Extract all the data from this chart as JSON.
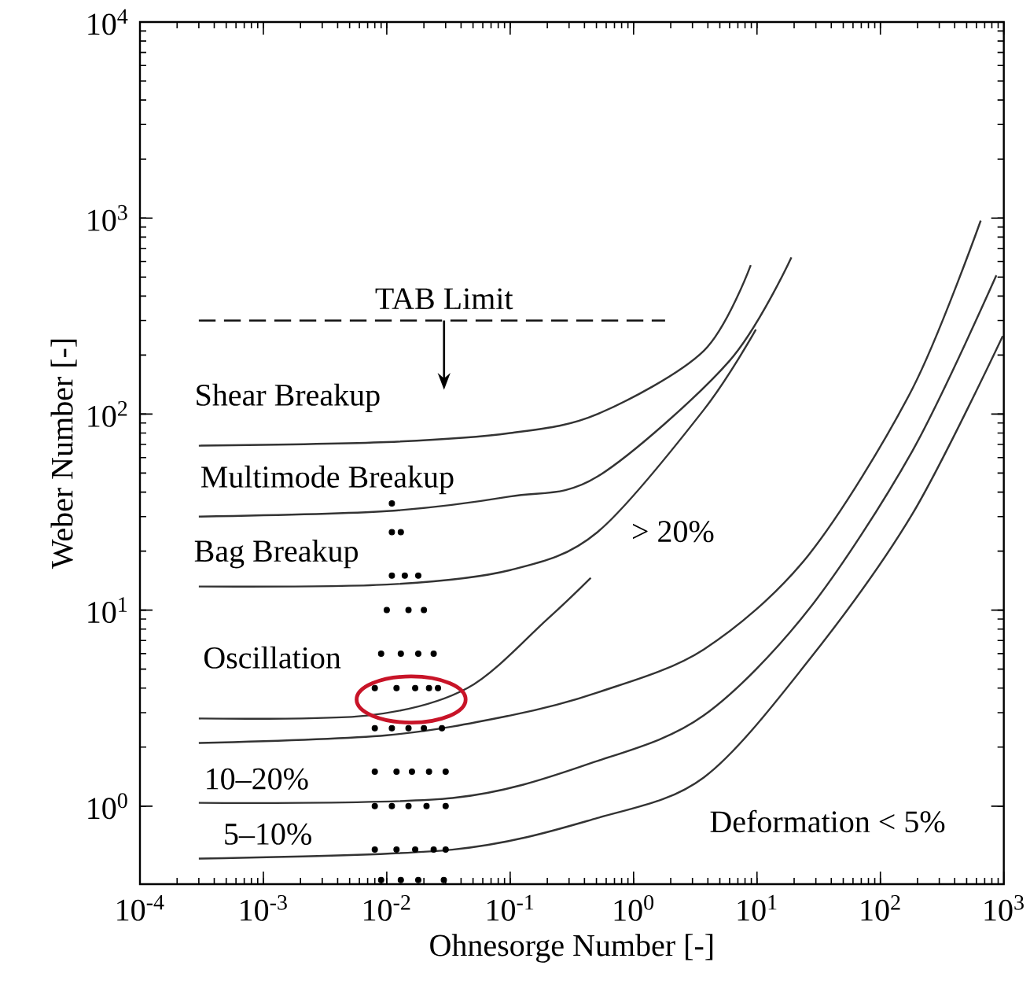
{
  "chart_data": {
    "type": "line",
    "xlabel": "Ohnesorge Number [-]",
    "ylabel": "Weber Number [-]",
    "log": "xy",
    "grid": false,
    "xlim": [
      0.0001,
      1000
    ],
    "ylim": [
      0.4,
      10000
    ],
    "xticks": [
      {
        "value": 0.0001,
        "label": "10$^{-4}$"
      },
      {
        "value": 0.001,
        "label": "10$^{-3}$"
      },
      {
        "value": 0.01,
        "label": "10$^{-2}$"
      },
      {
        "value": 0.1,
        "label": "10$^{-1}$"
      },
      {
        "value": 1,
        "label": "10$^{0}$"
      },
      {
        "value": 10,
        "label": "10$^{1}$"
      },
      {
        "value": 100,
        "label": "10$^{2}$"
      },
      {
        "value": 1000,
        "label": "10$^{3}$"
      }
    ],
    "yticks": [
      {
        "value": 1,
        "label": "10$^{0}$"
      },
      {
        "value": 10,
        "label": "10$^{1}$"
      },
      {
        "value": 100,
        "label": "10$^{2}$"
      },
      {
        "value": 1000,
        "label": "10$^{3}$"
      },
      {
        "value": 10000,
        "label": "10$^{4}$"
      }
    ],
    "series": [
      {
        "color": "#333333",
        "x": [
          0.0003,
          0.01,
          0.1,
          0.51,
          3.7,
          8.9
        ],
        "values": [
          69,
          72,
          80,
          100,
          210,
          575
        ]
      },
      {
        "color": "#333333",
        "x": [
          0.0003,
          0.01,
          0.1,
          0.51,
          5.9,
          19
        ],
        "values": [
          30,
          32,
          38,
          48,
          185,
          630
        ]
      },
      {
        "color": "#333333",
        "x": [
          0.0003,
          0.01,
          0.1,
          0.51,
          3.7,
          9.8
        ],
        "values": [
          13.2,
          13.5,
          16,
          25,
          105,
          270
        ]
      },
      {
        "color": "#333333",
        "x": [
          0.0003,
          0.007,
          0.045,
          0.2,
          0.45
        ],
        "values": [
          2.8,
          2.9,
          4.0,
          9,
          14.6
        ]
      },
      {
        "color": "#333333",
        "x": [
          0.0003,
          0.01,
          0.1,
          0.51,
          3.7,
          26,
          182,
          650
        ],
        "values": [
          2.1,
          2.3,
          2.9,
          3.8,
          6.3,
          19,
          135,
          970
        ]
      },
      {
        "color": "#333333",
        "x": [
          0.0003,
          0.034,
          0.51,
          3.7,
          26,
          182,
          870
        ],
        "values": [
          1.04,
          1.1,
          1.7,
          2.9,
          10,
          65,
          510
        ]
      },
      {
        "color": "#333333",
        "x": [
          0.0003,
          0.034,
          0.51,
          3.7,
          26,
          182,
          980
        ],
        "values": [
          0.54,
          0.6,
          0.87,
          1.4,
          5.5,
          31,
          250
        ]
      },
      {
        "color": "#111111",
        "line_style": "dashed",
        "x": [
          0.0003,
          1.8
        ],
        "values": [
          300,
          300
        ]
      },
      {
        "type": "scatter",
        "color": "#000000",
        "marker": "circle",
        "x": [
          0.011,
          0.011,
          0.013,
          0.011,
          0.014,
          0.018,
          0.01,
          0.015,
          0.02,
          0.009,
          0.013,
          0.018,
          0.024,
          0.008,
          0.012,
          0.017,
          0.022,
          0.026,
          0.008,
          0.011,
          0.015,
          0.02,
          0.028,
          0.008,
          0.012,
          0.016,
          0.022,
          0.03,
          0.008,
          0.011,
          0.015,
          0.021,
          0.03,
          0.008,
          0.012,
          0.017,
          0.024,
          0.03,
          0.009,
          0.013,
          0.018,
          0.029
        ],
        "values": [
          35,
          25,
          25,
          15,
          15,
          15,
          10,
          10,
          10,
          6,
          6,
          6,
          6,
          4,
          4,
          4,
          4,
          4,
          2.5,
          2.5,
          2.5,
          2.5,
          2.5,
          1.5,
          1.5,
          1.5,
          1.5,
          1.5,
          1,
          1,
          1,
          1,
          1,
          0.6,
          0.6,
          0.6,
          0.6,
          0.6,
          0.42,
          0.42,
          0.42,
          0.42
        ]
      }
    ],
    "annotations": [
      "TAB Limit",
      "Shear Breakup",
      "Multimode Breakup",
      "Bag Breakup",
      "Oscillation",
      "10–20%",
      "5–10%",
      "> 20%",
      "Deformation < 5%"
    ]
  }
}
